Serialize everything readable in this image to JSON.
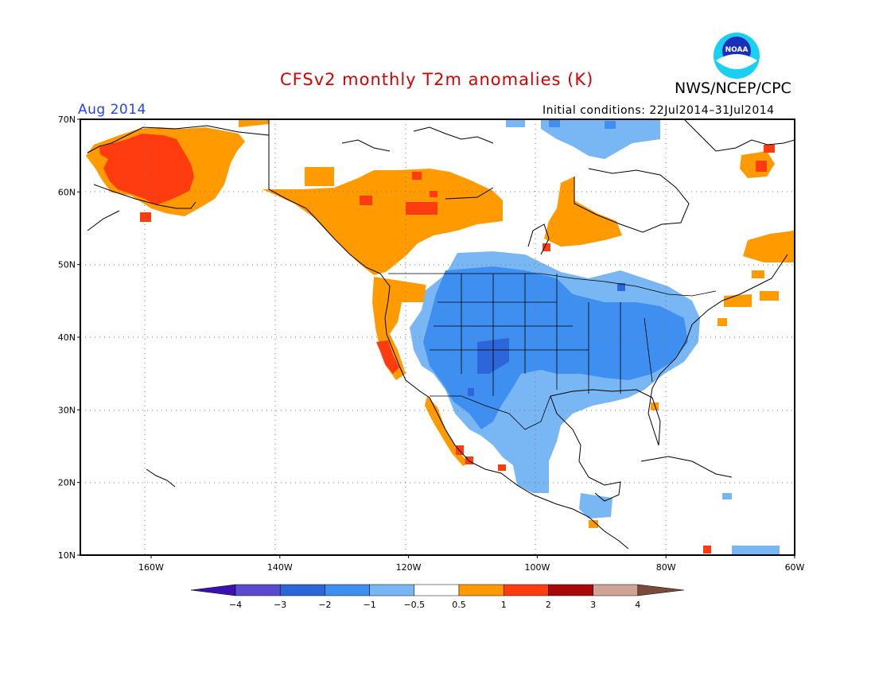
{
  "header": {
    "title": "CFSv2 monthly T2m anomalies (K)",
    "agency": "NWS/NCEP/CPC",
    "logo_text": "NOAA",
    "month": "Aug 2014",
    "initial_conditions": "Initial conditions: 22Jul2014–31Jul2014"
  },
  "map": {
    "lat_labels": [
      "70N",
      "60N",
      "50N",
      "40N",
      "30N",
      "20N",
      "10N"
    ],
    "lon_labels": [
      "160W",
      "140W",
      "120W",
      "100W",
      "80W",
      "60W"
    ],
    "lat_values": [
      70,
      60,
      50,
      40,
      30,
      20,
      10
    ],
    "lon_values": [
      -160,
      -140,
      -120,
      -100,
      -80,
      -60
    ],
    "lon_range": [
      -171,
      -60
    ],
    "lat_range": [
      10,
      70
    ],
    "grid": "dotted"
  },
  "colorbar": {
    "labels": [
      "−4",
      "−3",
      "−2",
      "−1",
      "−0.5",
      "0.5",
      "1",
      "2",
      "3",
      "4"
    ],
    "colors": [
      "#3a10b0",
      "#5a4ad0",
      "#2c66d8",
      "#3f8ff0",
      "#79b6f4",
      "#ffffff",
      "#ff9b00",
      "#ff3b10",
      "#a80808",
      "#cfa496",
      "#7a4a3a"
    ]
  },
  "anomaly_colors": {
    "warm_1": "#ff9b00",
    "warm_2": "#ff3b10",
    "warm_3": "#a80808",
    "cool_1": "#79b6f4",
    "cool_2": "#3f8ff0",
    "cool_3": "#2c66d8"
  }
}
